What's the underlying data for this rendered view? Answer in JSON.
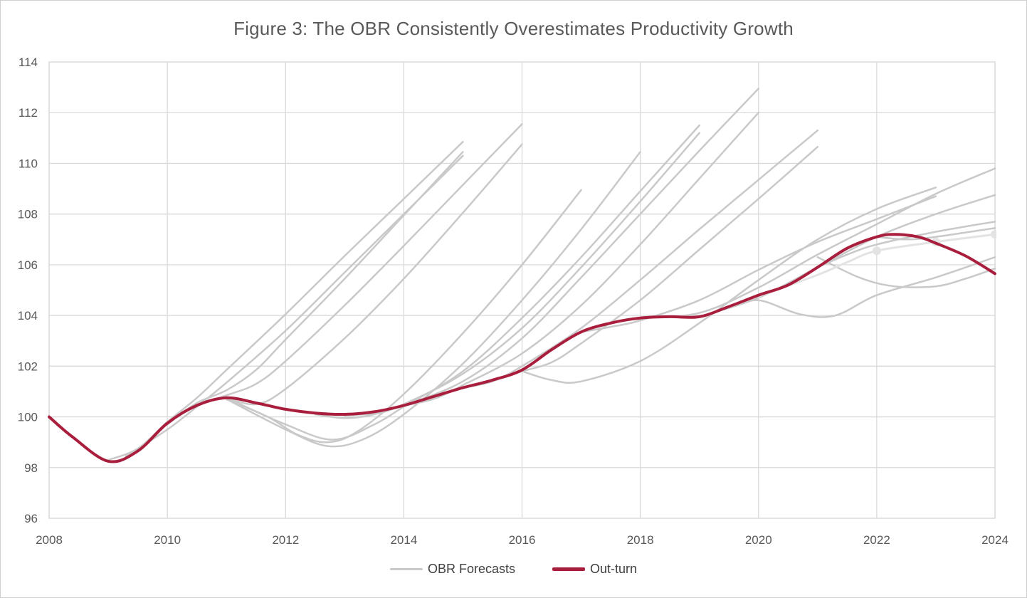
{
  "title": "Figure 3: The OBR Consistently Overestimates Productivity Growth",
  "legend": [
    {
      "label": "OBR Forecasts",
      "color": "#c9c9c9",
      "swatch_height": 3
    },
    {
      "label": "Out-turn",
      "color": "#a91e3c",
      "swatch_height": 5
    }
  ],
  "colors": {
    "forecast": "#c9c9c9",
    "forecast_light": "#e3e3e3",
    "outturn": "#a91e3c",
    "gridline": "#d9d9d9",
    "text": "#595959"
  },
  "chart_data": {
    "type": "line",
    "title": "Figure 3: The OBR Consistently Overestimates Productivity Growth",
    "xlabel": "",
    "ylabel": "",
    "grid": true,
    "legend_position": "bottom",
    "x_axis": {
      "min": 2008,
      "max": 2024,
      "tick_interval": 2,
      "tick_labels": [
        "2008",
        "2010",
        "2012",
        "2014",
        "2016",
        "2018",
        "2020",
        "2022",
        "2024"
      ]
    },
    "y_axis": {
      "min": 96,
      "max": 114,
      "tick_interval": 2,
      "tick_labels": [
        "96",
        "98",
        "100",
        "102",
        "104",
        "106",
        "108",
        "110",
        "112",
        "114"
      ]
    },
    "series": [
      {
        "name": "obr-forecast-1",
        "group": "OBR Forecasts",
        "color": "#c9c9c9",
        "width": 2.5,
        "points": [
          [
            2009,
            98.3
          ],
          [
            2009.5,
            98.75
          ],
          [
            2010,
            99.8
          ],
          [
            2010.5,
            100.75
          ],
          [
            2011,
            101.85
          ],
          [
            2012,
            104.05
          ],
          [
            2013,
            106.35
          ],
          [
            2014,
            108.6
          ],
          [
            2015,
            110.85
          ]
        ]
      },
      {
        "name": "obr-forecast-2",
        "group": "OBR Forecasts",
        "color": "#c9c9c9",
        "width": 2.5,
        "points": [
          [
            2009.3,
            98.45
          ],
          [
            2010,
            99.5
          ],
          [
            2010.5,
            100.4
          ],
          [
            2011,
            101.35
          ],
          [
            2012,
            103.4
          ],
          [
            2013,
            105.7
          ],
          [
            2014,
            108.0
          ],
          [
            2015,
            110.3
          ]
        ]
      },
      {
        "name": "obr-forecast-3",
        "group": "OBR Forecasts",
        "color": "#c9c9c9",
        "width": 2.5,
        "points": [
          [
            2010,
            99.7
          ],
          [
            2010.5,
            100.55
          ],
          [
            2011,
            101.05
          ],
          [
            2011.5,
            101.85
          ],
          [
            2012,
            103.05
          ],
          [
            2013,
            105.45
          ],
          [
            2014,
            107.95
          ],
          [
            2015,
            110.45
          ]
        ]
      },
      {
        "name": "obr-forecast-4",
        "group": "OBR Forecasts",
        "color": "#c9c9c9",
        "width": 2.5,
        "points": [
          [
            2010.5,
            100.45
          ],
          [
            2011,
            100.85
          ],
          [
            2011.5,
            101.3
          ],
          [
            2012,
            102.2
          ],
          [
            2013,
            104.4
          ],
          [
            2014,
            106.75
          ],
          [
            2015,
            109.15
          ],
          [
            2016,
            111.55
          ]
        ]
      },
      {
        "name": "obr-forecast-5",
        "group": "OBR Forecasts",
        "color": "#c9c9c9",
        "width": 2.5,
        "points": [
          [
            2011,
            100.75
          ],
          [
            2011.5,
            100.5
          ],
          [
            2012,
            101.1
          ],
          [
            2013,
            103.1
          ],
          [
            2014,
            105.45
          ],
          [
            2015,
            108.05
          ],
          [
            2016,
            110.75
          ]
        ]
      },
      {
        "name": "obr-forecast-6",
        "group": "OBR Forecasts",
        "color": "#c9c9c9",
        "width": 2.5,
        "points": [
          [
            2011,
            100.7
          ],
          [
            2011.7,
            100.0
          ],
          [
            2012.2,
            99.3
          ],
          [
            2012.7,
            99.0
          ],
          [
            2013.2,
            99.4
          ],
          [
            2014,
            100.9
          ],
          [
            2015,
            103.3
          ],
          [
            2016,
            106.0
          ],
          [
            2017,
            108.95
          ]
        ]
      },
      {
        "name": "obr-forecast-7",
        "group": "OBR Forecasts",
        "color": "#c9c9c9",
        "width": 2.5,
        "points": [
          [
            2011,
            100.7
          ],
          [
            2012,
            99.5
          ],
          [
            2012.7,
            98.85
          ],
          [
            2013.3,
            99.1
          ],
          [
            2014,
            100.1
          ],
          [
            2015,
            102.1
          ],
          [
            2016,
            104.6
          ],
          [
            2017,
            107.4
          ],
          [
            2018,
            110.45
          ]
        ]
      },
      {
        "name": "obr-forecast-8",
        "group": "OBR Forecasts",
        "color": "#c9c9c9",
        "width": 2.5,
        "points": [
          [
            2011,
            100.75
          ],
          [
            2012,
            99.7
          ],
          [
            2012.8,
            99.1
          ],
          [
            2013.5,
            99.7
          ],
          [
            2014,
            100.4
          ],
          [
            2015,
            101.8
          ],
          [
            2016,
            103.9
          ],
          [
            2017,
            106.3
          ],
          [
            2018,
            108.9
          ],
          [
            2019,
            111.5
          ]
        ]
      },
      {
        "name": "obr-forecast-9",
        "group": "OBR Forecasts",
        "color": "#c9c9c9",
        "width": 2.5,
        "points": [
          [
            2012.5,
            100.1
          ],
          [
            2013,
            99.95
          ],
          [
            2013.5,
            100.1
          ],
          [
            2014,
            100.5
          ],
          [
            2015,
            101.7
          ],
          [
            2016,
            103.5
          ],
          [
            2017,
            105.9
          ],
          [
            2018,
            108.5
          ],
          [
            2019,
            111.2
          ]
        ]
      },
      {
        "name": "obr-forecast-10",
        "group": "OBR Forecasts",
        "color": "#c9c9c9",
        "width": 2.5,
        "points": [
          [
            2013,
            100.05
          ],
          [
            2013.5,
            100.15
          ],
          [
            2014,
            100.45
          ],
          [
            2015,
            101.4
          ],
          [
            2016,
            103.1
          ],
          [
            2017,
            105.5
          ],
          [
            2018,
            108.0
          ],
          [
            2019,
            110.5
          ],
          [
            2020,
            112.95
          ]
        ]
      },
      {
        "name": "obr-forecast-11",
        "group": "OBR Forecasts",
        "color": "#c9c9c9",
        "width": 2.5,
        "points": [
          [
            2014,
            100.45
          ],
          [
            2014.5,
            100.7
          ],
          [
            2015,
            101.25
          ],
          [
            2016,
            102.5
          ],
          [
            2017,
            104.4
          ],
          [
            2018,
            106.8
          ],
          [
            2019,
            109.4
          ],
          [
            2020,
            112.0
          ]
        ]
      },
      {
        "name": "obr-forecast-12",
        "group": "OBR Forecasts",
        "color": "#c9c9c9",
        "width": 2.5,
        "points": [
          [
            2015,
            101.15
          ],
          [
            2015.5,
            101.4
          ],
          [
            2016,
            102.0
          ],
          [
            2017,
            103.5
          ],
          [
            2018,
            105.4
          ],
          [
            2019,
            107.4
          ],
          [
            2020,
            109.35
          ],
          [
            2021,
            111.3
          ]
        ]
      },
      {
        "name": "obr-forecast-13",
        "group": "OBR Forecasts",
        "color": "#c9c9c9",
        "width": 2.5,
        "points": [
          [
            2015.5,
            101.45
          ],
          [
            2016,
            101.8
          ],
          [
            2016.5,
            102.15
          ],
          [
            2017,
            102.9
          ],
          [
            2018,
            104.6
          ],
          [
            2019,
            106.6
          ],
          [
            2020,
            108.6
          ],
          [
            2021,
            110.65
          ]
        ]
      },
      {
        "name": "obr-forecast-14",
        "group": "OBR Forecasts",
        "color": "#c9c9c9",
        "width": 2.5,
        "points": [
          [
            2016,
            101.8
          ],
          [
            2016.5,
            101.45
          ],
          [
            2017,
            101.4
          ],
          [
            2018,
            102.2
          ],
          [
            2019,
            103.7
          ],
          [
            2020,
            105.4
          ],
          [
            2021,
            107.0
          ],
          [
            2022,
            108.2
          ],
          [
            2023,
            109.05
          ]
        ]
      },
      {
        "name": "obr-forecast-15",
        "group": "OBR Forecasts",
        "color": "#c9c9c9",
        "width": 2.5,
        "points": [
          [
            2017,
            103.35
          ],
          [
            2017.5,
            103.55
          ],
          [
            2018,
            103.8
          ],
          [
            2019,
            104.6
          ],
          [
            2020,
            105.8
          ],
          [
            2021,
            106.9
          ],
          [
            2022,
            107.8
          ],
          [
            2023,
            108.7
          ]
        ]
      },
      {
        "name": "obr-forecast-16",
        "group": "OBR Forecasts",
        "color": "#c9c9c9",
        "width": 2.5,
        "points": [
          [
            2018,
            103.9
          ],
          [
            2019,
            104.1
          ],
          [
            2020,
            105.1
          ],
          [
            2021,
            106.4
          ],
          [
            2022,
            107.6
          ],
          [
            2023,
            108.8
          ],
          [
            2024,
            109.8
          ]
        ]
      },
      {
        "name": "obr-forecast-17",
        "group": "OBR Forecasts",
        "color": "#c9c9c9",
        "width": 2.5,
        "points": [
          [
            2019,
            103.95
          ],
          [
            2020,
            104.7
          ],
          [
            2021,
            105.9
          ],
          [
            2022,
            107.1
          ],
          [
            2023,
            108.0
          ],
          [
            2024,
            108.75
          ]
        ]
      },
      {
        "name": "obr-forecast-18",
        "group": "OBR Forecasts",
        "color": "#c9c9c9",
        "width": 2.5,
        "points": [
          [
            2019.5,
            104.3
          ],
          [
            2020,
            104.6
          ],
          [
            2020.7,
            104.05
          ],
          [
            2021.3,
            104.0
          ],
          [
            2022,
            104.8
          ],
          [
            2023,
            105.5
          ],
          [
            2024,
            106.3
          ]
        ]
      },
      {
        "name": "obr-forecast-19",
        "group": "OBR Forecasts",
        "color": "#c9c9c9",
        "width": 2.5,
        "points": [
          [
            2021,
            106.3
          ],
          [
            2021.7,
            105.5
          ],
          [
            2022.3,
            105.15
          ],
          [
            2023,
            105.15
          ],
          [
            2023.5,
            105.45
          ],
          [
            2024,
            105.85
          ]
        ]
      },
      {
        "name": "obr-forecast-20",
        "group": "OBR Forecasts",
        "color": "#c9c9c9",
        "width": 2.5,
        "points": [
          [
            2021,
            105.9
          ],
          [
            2021.5,
            106.4
          ],
          [
            2022,
            106.8
          ],
          [
            2023,
            107.3
          ],
          [
            2024,
            107.7
          ]
        ]
      },
      {
        "name": "obr-forecast-21",
        "group": "OBR Forecasts",
        "color": "#c9c9c9",
        "width": 2.5,
        "points": [
          [
            2022,
            107.1
          ],
          [
            2022.5,
            107.0
          ],
          [
            2023,
            107.1
          ],
          [
            2024,
            107.45
          ]
        ]
      },
      {
        "name": "obr-forecast-latest",
        "group": "OBR Forecasts",
        "color": "#e3e3e3",
        "width": 3,
        "points": [
          [
            2020,
            104.75
          ],
          [
            2021,
            105.6
          ],
          [
            2021.5,
            106.1
          ],
          [
            2022,
            106.55
          ],
          [
            2023,
            106.9
          ],
          [
            2024,
            107.2
          ]
        ],
        "markers": [
          [
            2022,
            106.55
          ],
          [
            2023,
            106.9
          ],
          [
            2024,
            107.2
          ]
        ]
      },
      {
        "name": "out-turn",
        "group": "Out-turn",
        "color": "#a91e3c",
        "width": 4,
        "points": [
          [
            2008,
            100.0
          ],
          [
            2008.4,
            99.2
          ],
          [
            2009,
            98.25
          ],
          [
            2009.5,
            98.65
          ],
          [
            2010,
            99.75
          ],
          [
            2010.5,
            100.45
          ],
          [
            2011,
            100.75
          ],
          [
            2011.5,
            100.55
          ],
          [
            2012,
            100.3
          ],
          [
            2012.5,
            100.15
          ],
          [
            2013,
            100.1
          ],
          [
            2013.5,
            100.2
          ],
          [
            2014,
            100.45
          ],
          [
            2014.5,
            100.8
          ],
          [
            2015,
            101.15
          ],
          [
            2015.5,
            101.45
          ],
          [
            2016,
            101.85
          ],
          [
            2016.5,
            102.65
          ],
          [
            2017,
            103.35
          ],
          [
            2017.5,
            103.7
          ],
          [
            2018,
            103.9
          ],
          [
            2018.5,
            103.95
          ],
          [
            2019,
            103.95
          ],
          [
            2019.5,
            104.35
          ],
          [
            2020,
            104.8
          ],
          [
            2020.5,
            105.2
          ],
          [
            2021,
            105.9
          ],
          [
            2021.5,
            106.65
          ],
          [
            2022,
            107.1
          ],
          [
            2022.3,
            107.2
          ],
          [
            2022.7,
            107.1
          ],
          [
            2023,
            106.85
          ],
          [
            2023.5,
            106.35
          ],
          [
            2024,
            105.65
          ]
        ]
      }
    ]
  }
}
